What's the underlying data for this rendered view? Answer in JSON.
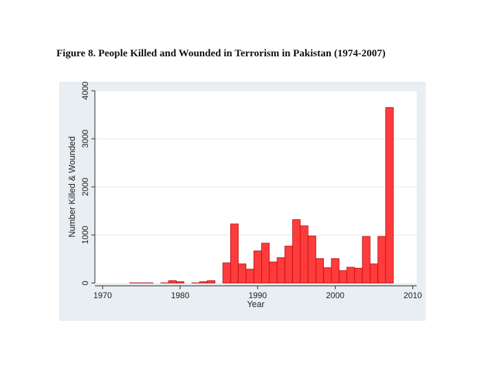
{
  "figure_title": "Figure 8. People Killed and Wounded in Terrorism in Pakistan (1974-2007)",
  "colors": {
    "bar_fill": "#ff3b3b",
    "bar_stroke": "#b01010",
    "panel_background": "#e8eef2",
    "plot_background": "#ffffff",
    "grid": "#e6e6e6"
  },
  "chart_data": {
    "type": "bar",
    "title": "Figure 8. People Killed and Wounded in Terrorism in Pakistan (1974-2007)",
    "xlabel": "Year",
    "ylabel": "Number Killed & Wounded",
    "xlim": [
      1969,
      2010.5
    ],
    "ylim": [
      0,
      4000
    ],
    "xticks": [
      1970,
      1980,
      1990,
      2000,
      2010
    ],
    "yticks": [
      0,
      1000,
      2000,
      3000,
      4000
    ],
    "grid": true,
    "legend": "none",
    "x": [
      1974,
      1975,
      1976,
      1977,
      1978,
      1979,
      1980,
      1981,
      1982,
      1983,
      1984,
      1985,
      1986,
      1987,
      1988,
      1989,
      1990,
      1991,
      1992,
      1993,
      1994,
      1995,
      1996,
      1997,
      1998,
      1999,
      2000,
      2001,
      2002,
      2003,
      2004,
      2005,
      2006,
      2007
    ],
    "values": [
      5,
      5,
      5,
      0,
      5,
      50,
      30,
      0,
      5,
      30,
      50,
      0,
      420,
      1230,
      400,
      290,
      670,
      830,
      440,
      530,
      770,
      1320,
      1190,
      980,
      510,
      320,
      510,
      260,
      330,
      310,
      970,
      400,
      970,
      3650
    ]
  }
}
